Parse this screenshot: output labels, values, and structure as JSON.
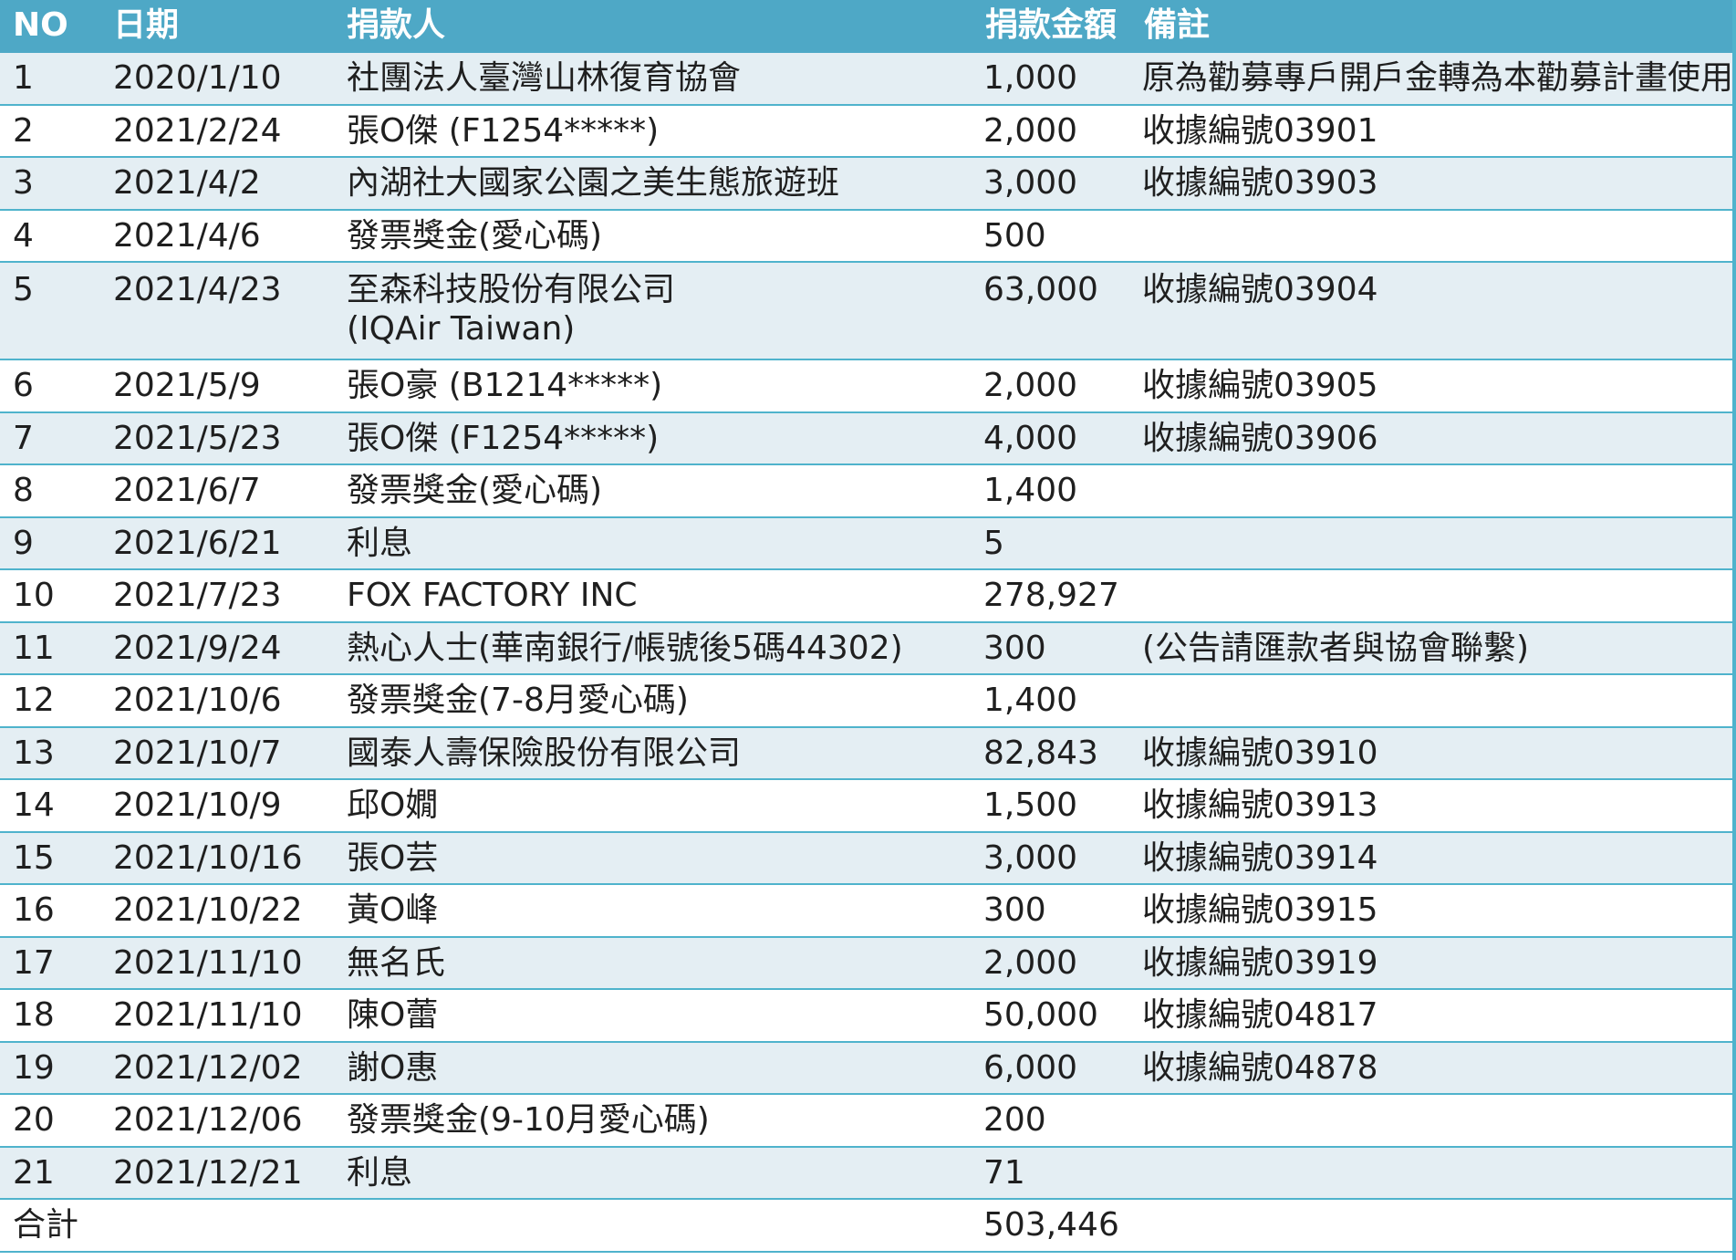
{
  "columns": {
    "no": "NO",
    "date": "日期",
    "donor": "捐款人",
    "amount": "捐款金額",
    "note": "備註"
  },
  "rows": [
    {
      "no": "1",
      "date": "2020/1/10",
      "donor": "社團法人臺灣山林復育協會",
      "donor2": "",
      "amount": "1,000",
      "note": "原為勸募專戶開戶金轉為本勸募計畫使用"
    },
    {
      "no": "2",
      "date": "2021/2/24",
      "donor": "張O傑  (F1254*****)",
      "donor2": "",
      "amount": "2,000",
      "note": "收據編號03901"
    },
    {
      "no": "3",
      "date": "2021/4/2",
      "donor": "內湖社大國家公園之美生態旅遊班",
      "donor2": "",
      "amount": "3,000",
      "note": "收據編號03903"
    },
    {
      "no": "4",
      "date": "2021/4/6",
      "donor": "發票獎金(愛心碼)",
      "donor2": "",
      "amount": "500",
      "note": ""
    },
    {
      "no": "5",
      "date": "2021/4/23",
      "donor": "至森科技股份有限公司",
      "donor2": "(IQAir Taiwan)",
      "amount": "63,000",
      "note": "收據編號03904"
    },
    {
      "no": "6",
      "date": "2021/5/9",
      "donor": "張O豪  (B1214*****)",
      "donor2": "",
      "amount": "2,000",
      "note": "收據編號03905"
    },
    {
      "no": "7",
      "date": "2021/5/23",
      "donor": "張O傑  (F1254*****)",
      "donor2": "",
      "amount": "4,000",
      "note": "收據編號03906"
    },
    {
      "no": "8",
      "date": "2021/6/7",
      "donor": "發票獎金(愛心碼)",
      "donor2": "",
      "amount": "1,400",
      "note": ""
    },
    {
      "no": "9",
      "date": "2021/6/21",
      "donor": "利息",
      "donor2": "",
      "amount": "5",
      "note": ""
    },
    {
      "no": "10",
      "date": "2021/7/23",
      "donor": "FOX FACTORY INC",
      "donor2": "",
      "amount": "278,927",
      "note": ""
    },
    {
      "no": "11",
      "date": "2021/9/24",
      "donor": "熱心人士(華南銀行/帳號後5碼44302)",
      "donor2": "",
      "amount": "300",
      "note": "(公告請匯款者與協會聯繫)"
    },
    {
      "no": "12",
      "date": "2021/10/6",
      "donor": "發票獎金(7-8月愛心碼)",
      "donor2": "",
      "amount": "1,400",
      "note": ""
    },
    {
      "no": "13",
      "date": "2021/10/7",
      "donor": "國泰人壽保險股份有限公司",
      "donor2": "",
      "amount": "82,843",
      "note": "收據編號03910"
    },
    {
      "no": "14",
      "date": "2021/10/9",
      "donor": "邱O嫺",
      "donor2": "",
      "amount": "1,500",
      "note": "收據編號03913"
    },
    {
      "no": "15",
      "date": "2021/10/16",
      "donor": "張O芸",
      "donor2": "",
      "amount": "3,000",
      "note": "收據編號03914"
    },
    {
      "no": "16",
      "date": "2021/10/22",
      "donor": "黃O峰",
      "donor2": "",
      "amount": "300",
      "note": "收據編號03915"
    },
    {
      "no": "17",
      "date": "2021/11/10",
      "donor": "無名氏",
      "donor2": "",
      "amount": "2,000",
      "note": "收據編號03919"
    },
    {
      "no": "18",
      "date": "2021/11/10",
      "donor": "陳O蕾",
      "donor2": "",
      "amount": "50,000",
      "note": "收據編號04817"
    },
    {
      "no": "19",
      "date": "2021/12/02",
      "donor": "謝O惠",
      "donor2": "",
      "amount": "6,000",
      "note": "收據編號04878"
    },
    {
      "no": "20",
      "date": "2021/12/06",
      "donor": "發票獎金(9-10月愛心碼)",
      "donor2": "",
      "amount": "200",
      "note": ""
    },
    {
      "no": "21",
      "date": "2021/12/21",
      "donor": "利息",
      "donor2": "",
      "amount": "71",
      "note": ""
    }
  ],
  "total": {
    "label": "合計",
    "amount": "503,446"
  },
  "colors": {
    "header_bg": "#4ea8c6",
    "row_alt_bg": "#e4eef3",
    "grid_line": "#4fb3cc"
  }
}
